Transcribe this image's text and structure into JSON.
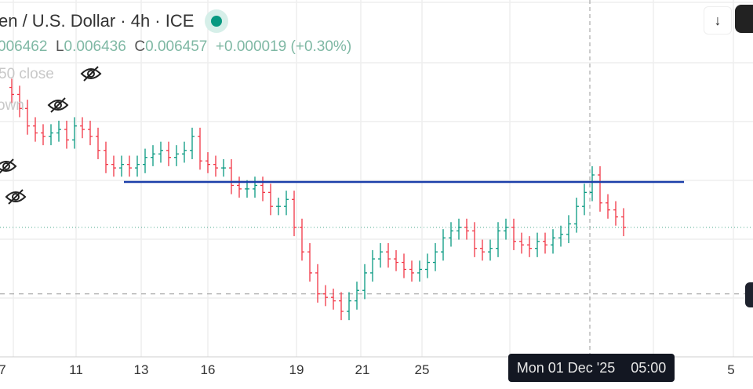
{
  "header": {
    "title": "en / U.S. Dollar · 4h · ICE",
    "status": "market-open",
    "ohlc": {
      "h_value": "006462",
      "l_label": "L",
      "l_value": "0.006436",
      "c_label": "C",
      "c_value": "0.006457",
      "change": "+0.000019 (+0.30%)"
    }
  },
  "indicators": [
    {
      "label": "50 close",
      "icon": "eye-off-icon"
    },
    {
      "label": "own",
      "icon": "eye-off-icon"
    }
  ],
  "x_axis": {
    "labels": [
      "7",
      "11",
      "13",
      "16",
      "19",
      "21",
      "25",
      "5"
    ]
  },
  "crosshair_tooltip": {
    "date": "Mon 01 Dec '25",
    "time": "05:00"
  },
  "colors": {
    "up": "#089981",
    "down": "#f23645",
    "hline": "#1c3faa",
    "accent": "#089981"
  },
  "chart_data": {
    "type": "candlestick",
    "first_open": 0.006497,
    "closes": [
      0.006495,
      0.006491,
      0.006486,
      0.006484,
      0.006483,
      0.006484,
      0.006485,
      0.006482,
      0.006486,
      0.006485,
      0.006483,
      0.006479,
      0.006475,
      0.006474,
      0.006475,
      0.006474,
      0.006475,
      0.006477,
      0.006478,
      0.006479,
      0.006477,
      0.006478,
      0.006479,
      0.006483,
      0.006476,
      0.006475,
      0.006474,
      0.006474,
      0.006469,
      0.006468,
      0.006468,
      0.006469,
      0.006467,
      0.006463,
      0.006463,
      0.006465,
      0.006457,
      0.00645,
      0.006444,
      0.006438,
      0.006437,
      0.006436,
      0.006433,
      0.006436,
      0.006439,
      0.006444,
      0.006448,
      0.00645,
      0.006448,
      0.006447,
      0.006445,
      0.006444,
      0.006445,
      0.006447,
      0.00645,
      0.006454,
      0.006456,
      0.006457,
      0.006456,
      0.006451,
      0.00645,
      0.006451,
      0.006456,
      0.006457,
      0.006453,
      0.006452,
      0.006451,
      0.006453,
      0.006452,
      0.006454,
      0.006455,
      0.006458,
      0.006463,
      0.006467,
      0.006472,
      0.006464,
      0.006462,
      0.00646,
      0.006457
    ],
    "horizontal_line": 0.00647,
    "last_price": 0.006457,
    "crosshair_price": 0.006438,
    "ylim": [
      0.00642,
      0.006522
    ]
  }
}
